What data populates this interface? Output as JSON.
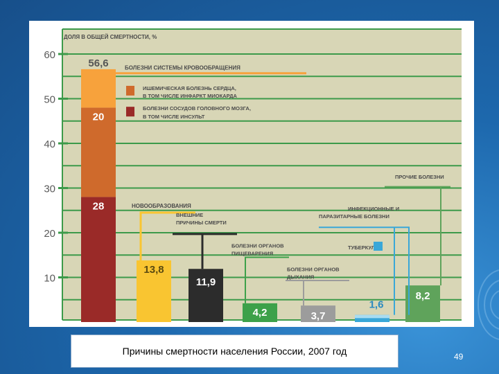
{
  "slide": {
    "caption": "Причины смертности населения России, 2007 год",
    "page_number": "49"
  },
  "colors": {
    "grid": "#3c9a4a",
    "panel_bg": "#d8d6b6",
    "cardio_light": "#f7a23c",
    "cardio_mid": "#cf6a2c",
    "cardio_dark": "#9a2a28",
    "neoplasms": "#f9c531",
    "external": "#2c2c2c",
    "digestive": "#3da14a",
    "respiratory": "#9c9c9c",
    "infectious": "#39a7d8",
    "infectious_light": "#a9dcf0",
    "other": "#5fa35b",
    "label_text": "#4a4a4a"
  },
  "chart_data": {
    "type": "bar",
    "ylabel": "ДОЛЯ В ОБЩЕЙ СМЕРТНОСТИ, %",
    "ylim": [
      0,
      62
    ],
    "yticks": [
      "10",
      "20",
      "30",
      "40",
      "50",
      "60"
    ],
    "grid": true,
    "categories": [
      "БОЛЕЗНИ СИСТЕМЫ КРОВООБРАЩЕНИЯ",
      "НОВООБРАЗОВАНИЯ",
      "ВНЕШНИЕ ПРИЧИНЫ СМЕРТИ",
      "БОЛЕЗНИ ОРГАНОВ ПИЩЕВАРЕНИЯ",
      "БОЛЕЗНИ ОРГАНОВ ДЫХАНИЯ",
      "ИНФЕКЦИОННЫЕ И ПАРАЗИТАРНЫЕ БОЛЕЗНИ",
      "ПРОЧИЕ БОЛЕЗНИ"
    ],
    "values": [
      56.6,
      13.8,
      11.9,
      4.2,
      3.7,
      1.6,
      8.2
    ],
    "value_labels": [
      "56,6",
      "13,8",
      "11,9",
      "4,2",
      "3,7",
      "1,6",
      "8,2"
    ],
    "cardio_breakdown": [
      {
        "name": "ИШЕМИЧЕСКАЯ БОЛЕЗНЬ СЕРДЦА, В ТОМ ЧИСЛЕ ИНФАРКТ МИОКАРДА",
        "value": 20,
        "label": "20"
      },
      {
        "name": "БОЛЕЗНИ СОСУДОВ ГОЛОВНОГО МОЗГА, В ТОМ ЧИСЛЕ ИНСУЛЬТ",
        "value": 28,
        "label": "28"
      }
    ],
    "legend": [
      {
        "name": "ИШЕМИЧЕСКАЯ БОЛЕЗНЬ СЕРДЦА, В ТОМ ЧИСЛЕ ИНФАРКТ МИОКАРДА"
      },
      {
        "name": "БОЛЕЗНИ СОСУДОВ ГОЛОВНОГО МОЗГА, В ТОМ ЧИСЛЕ ИНСУЛЬТ"
      },
      {
        "name": "ТУБЕРКУЛЕЗ"
      }
    ]
  }
}
